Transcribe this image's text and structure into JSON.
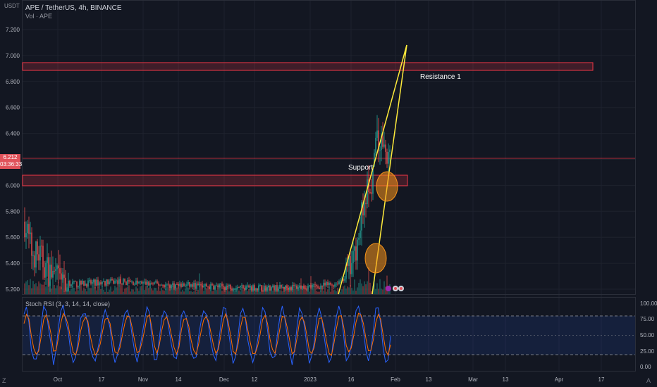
{
  "header": {
    "symbol_line": "APE / TetherUS, 4h, BINANCE",
    "volume_label": "Vol · APE",
    "currency": "USDT"
  },
  "price_badge": {
    "price": "6.212",
    "countdown": "03:36:33"
  },
  "annotations": {
    "resistance_label": "Resistance 1",
    "support_label": "Support"
  },
  "stoch": {
    "label": "Stoch RSI (3, 3, 14, 14, close)",
    "ticks": [
      "100.00",
      "75.00",
      "50.00",
      "25.00",
      "0.00"
    ]
  },
  "corners": {
    "left": "Z",
    "right": "A"
  },
  "colors": {
    "background": "#131722",
    "bull": "#26a69a",
    "bear": "#ef5350",
    "trendline": "#ffeb3b",
    "zone": "#f23645",
    "circle": "#f7931a",
    "stoch_k": "#2962ff",
    "stoch_d": "#ff6d00"
  },
  "chart_data": {
    "type": "candlestick",
    "symbol": "APE / TetherUS",
    "timeframe": "4h",
    "exchange": "BINANCE",
    "y_ticks": [
      "7.200",
      "7.000",
      "6.800",
      "6.600",
      "6.400",
      "6.200",
      "6.000",
      "5.800",
      "5.600",
      "5.400",
      "5.200"
    ],
    "x_ticks": [
      "Oct",
      "17",
      "Nov",
      "14",
      "Dec",
      "12",
      "2023",
      "16",
      "Feb",
      "13",
      "Mar",
      "13",
      "Apr",
      "17"
    ],
    "ylim": [
      5.15,
      7.3
    ],
    "last_price": 6.212,
    "price_path": [
      [
        0,
        5.72
      ],
      [
        0.02,
        5.48
      ],
      [
        0.04,
        5.46
      ],
      [
        0.06,
        5.36
      ],
      [
        0.08,
        5.3
      ],
      [
        0.1,
        5.26
      ],
      [
        0.14,
        5.24
      ],
      [
        0.2,
        5.25
      ],
      [
        0.26,
        5.26
      ],
      [
        0.3,
        5.25
      ],
      [
        0.35,
        5.24
      ],
      [
        0.4,
        5.23
      ],
      [
        0.45,
        5.23
      ],
      [
        0.5,
        5.22
      ],
      [
        0.55,
        5.22
      ],
      [
        0.6,
        5.22
      ],
      [
        0.65,
        5.21
      ],
      [
        0.7,
        5.21
      ],
      [
        0.75,
        5.22
      ],
      [
        0.8,
        5.22
      ],
      [
        0.85,
        5.24
      ],
      [
        0.88,
        5.3
      ],
      [
        0.9,
        5.4
      ],
      [
        0.91,
        5.55
      ],
      [
        0.92,
        5.75
      ],
      [
        0.935,
        5.95
      ],
      [
        0.95,
        6.05
      ],
      [
        0.96,
        6.25
      ],
      [
        0.97,
        6.35
      ],
      [
        0.985,
        6.28
      ],
      [
        1.0,
        6.21
      ]
    ],
    "resistance_zone": [
      6.87,
      6.93
    ],
    "support_zone": [
      5.99,
      6.07
    ],
    "horizontal_line": 6.21,
    "stoch_rsi": {
      "levels": [
        80,
        50,
        20
      ],
      "ylim": [
        0,
        100
      ]
    }
  }
}
